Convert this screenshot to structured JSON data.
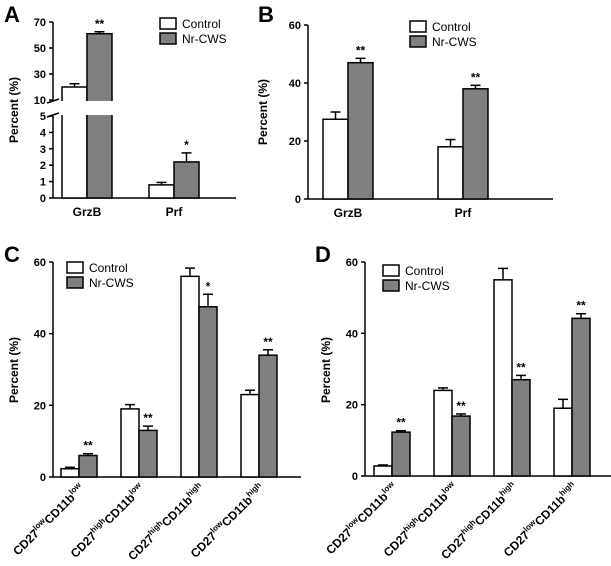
{
  "colors": {
    "control": "#ffffff",
    "treated": "#808080",
    "stroke": "#000000"
  },
  "chart_data": [
    {
      "panel": "A",
      "type": "bar",
      "ylabel": "Percent  (%)",
      "axis_break": true,
      "upper_ylim": [
        10,
        70
      ],
      "upper_ticks": [
        "10",
        "30",
        "50",
        "70"
      ],
      "lower_ylim": [
        0,
        5
      ],
      "lower_ticks": [
        "0",
        "1",
        "2",
        "3",
        "4",
        "5"
      ],
      "categories": [
        "GrzB",
        "Prf"
      ],
      "series": [
        {
          "name": "Control",
          "values": [
            20,
            0.8
          ],
          "errors": [
            2.5,
            0.15
          ]
        },
        {
          "name": "Nr-CWS",
          "values": [
            61,
            2.2
          ],
          "errors": [
            1.5,
            0.55
          ]
        }
      ],
      "significance": {
        "Nr-CWS": [
          "**",
          "*"
        ]
      },
      "legend": "top-right"
    },
    {
      "panel": "B",
      "type": "bar",
      "ylabel": "Percent  (%)",
      "ylim": [
        0,
        60
      ],
      "ticks": [
        "0",
        "20",
        "40",
        "60"
      ],
      "categories": [
        "GrzB",
        "Prf"
      ],
      "series": [
        {
          "name": "Control",
          "values": [
            27.5,
            18
          ],
          "errors": [
            2.5,
            2.5
          ]
        },
        {
          "name": "Nr-CWS",
          "values": [
            47,
            38
          ],
          "errors": [
            1.5,
            1.2
          ]
        }
      ],
      "significance": {
        "Nr-CWS": [
          "**",
          "**"
        ]
      },
      "legend": "top-right"
    },
    {
      "panel": "C",
      "type": "bar",
      "ylabel": "Percent  (%)",
      "ylim": [
        0,
        60
      ],
      "ticks": [
        "0",
        "20",
        "40",
        "60"
      ],
      "categories": [
        {
          "parts": [
            [
              "CD27",
              ""
            ],
            [
              "low",
              "sup"
            ],
            [
              "CD11b",
              ""
            ],
            [
              "low",
              "sup"
            ]
          ]
        },
        {
          "parts": [
            [
              "CD27",
              ""
            ],
            [
              "high",
              "sup"
            ],
            [
              "CD11b",
              ""
            ],
            [
              "low",
              "sup"
            ]
          ]
        },
        {
          "parts": [
            [
              "CD27",
              ""
            ],
            [
              "high",
              "sup"
            ],
            [
              "CD11b",
              ""
            ],
            [
              "high",
              "sup"
            ]
          ]
        },
        {
          "parts": [
            [
              "CD27",
              ""
            ],
            [
              "low",
              "sup"
            ],
            [
              "CD11b",
              ""
            ],
            [
              "high",
              "sup"
            ]
          ]
        }
      ],
      "series": [
        {
          "name": "Control",
          "values": [
            2.3,
            19,
            56,
            23
          ],
          "errors": [
            0.4,
            1.2,
            2.3,
            1.2
          ]
        },
        {
          "name": "Nr-CWS",
          "values": [
            6,
            13,
            47.5,
            34
          ],
          "errors": [
            0.5,
            1.2,
            3.5,
            1.5
          ]
        }
      ],
      "significance": {
        "Nr-CWS": [
          "**",
          "**",
          "*",
          "**"
        ]
      },
      "legend": "top-left"
    },
    {
      "panel": "D",
      "type": "bar",
      "ylabel": "Percent  (%)",
      "ylim": [
        0,
        60
      ],
      "ticks": [
        "0",
        "20",
        "40",
        "60"
      ],
      "categories": [
        {
          "parts": [
            [
              "CD27",
              ""
            ],
            [
              "low",
              "sup"
            ],
            [
              "CD11b",
              ""
            ],
            [
              "low",
              "sup"
            ]
          ]
        },
        {
          "parts": [
            [
              "CD27",
              ""
            ],
            [
              "high",
              "sup"
            ],
            [
              "CD11b",
              ""
            ],
            [
              "low",
              "sup"
            ]
          ]
        },
        {
          "parts": [
            [
              "CD27",
              ""
            ],
            [
              "high",
              "sup"
            ],
            [
              "CD11b",
              ""
            ],
            [
              "high",
              "sup"
            ]
          ]
        },
        {
          "parts": [
            [
              "CD27",
              ""
            ],
            [
              "low",
              "sup"
            ],
            [
              "CD11b",
              ""
            ],
            [
              "high",
              "sup"
            ]
          ]
        }
      ],
      "series": [
        {
          "name": "Control",
          "values": [
            2.8,
            24,
            55,
            19
          ],
          "errors": [
            0.3,
            0.7,
            3.2,
            2.5
          ]
        },
        {
          "name": "Nr-CWS",
          "values": [
            12.3,
            16.8,
            27,
            44.2
          ],
          "errors": [
            0.4,
            0.6,
            1.2,
            1.3
          ]
        }
      ],
      "significance": {
        "Nr-CWS": [
          "**",
          "**",
          "**",
          "**"
        ]
      },
      "legend": "top-left"
    }
  ]
}
